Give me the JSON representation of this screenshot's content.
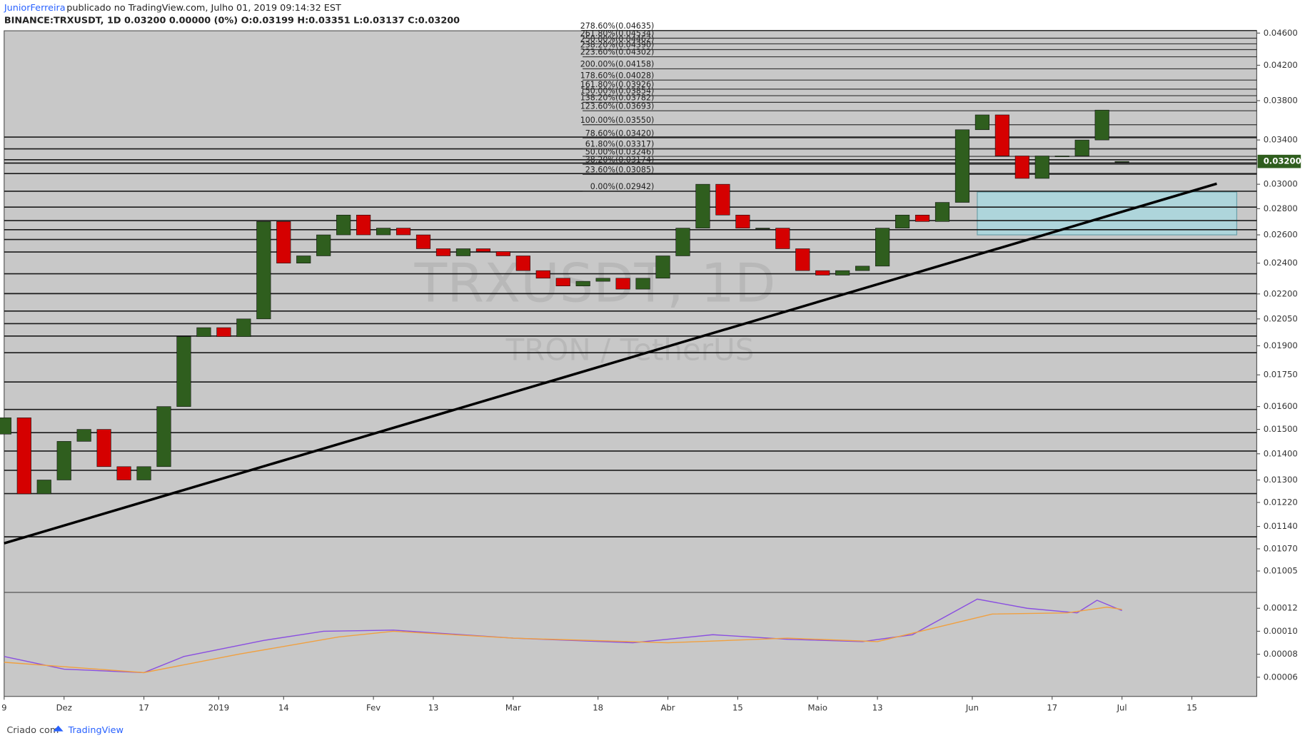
{
  "chart_data": [
    {
      "type": "candlestick",
      "author": "JuniorFerreira",
      "published": "publicado no TradingView.com, Julho 01, 2019 09:14:32 EST",
      "subtitle": "BINANCE:TRXUSDT, 1D  0.03200 0.00000 (0%) O:0.03199 H:0.03351 L:0.03137 C:0.03200",
      "watermark": "TRXUSDT, 1D",
      "watermark_subtitle": "TRON / TetherUS",
      "footer": "Criado com",
      "footer_brand": "TradingView",
      "log_scale": true,
      "up_color": "#2f5e1e",
      "down_color": "#d50000",
      "xlim": [
        "2018-11-19",
        "2019-07-28"
      ],
      "xticks": [
        {
          "value": "2018-11-19",
          "label": "9"
        },
        {
          "value": "2018-12-01",
          "label": "Dez"
        },
        {
          "value": "2018-12-17",
          "label": "17"
        },
        {
          "value": "2019-01-01",
          "label": "2019"
        },
        {
          "value": "2019-01-14",
          "label": "14"
        },
        {
          "value": "2019-02-01",
          "label": "Fev"
        },
        {
          "value": "2019-02-13",
          "label": "13"
        },
        {
          "value": "2019-03-01",
          "label": "Mar"
        },
        {
          "value": "2019-03-18",
          "label": "18"
        },
        {
          "value": "2019-04-01",
          "label": "Abr"
        },
        {
          "value": "2019-04-15",
          "label": "15"
        },
        {
          "value": "2019-05-01",
          "label": "Maio"
        },
        {
          "value": "2019-05-13",
          "label": "13"
        },
        {
          "value": "2019-06-01",
          "label": "Jun"
        },
        {
          "value": "2019-06-17",
          "label": "17"
        },
        {
          "value": "2019-07-01",
          "label": "Jul"
        },
        {
          "value": "2019-07-15",
          "label": "15"
        }
      ],
      "ylim": [
        0.00946,
        0.0463
      ],
      "yticks": [
        {
          "value": 0.046,
          "label": "0.04600"
        },
        {
          "value": 0.042,
          "label": "0.04200"
        },
        {
          "value": 0.038,
          "label": "0.03800"
        },
        {
          "value": 0.034,
          "label": "0.03400"
        },
        {
          "value": 0.03,
          "label": "0.03000"
        },
        {
          "value": 0.028,
          "label": "0.02800"
        },
        {
          "value": 0.026,
          "label": "0.02600"
        },
        {
          "value": 0.024,
          "label": "0.02400"
        },
        {
          "value": 0.022,
          "label": "0.02200"
        },
        {
          "value": 0.0205,
          "label": "0.02050"
        },
        {
          "value": 0.019,
          "label": "0.01900"
        },
        {
          "value": 0.0175,
          "label": "0.01750"
        },
        {
          "value": 0.016,
          "label": "0.01600"
        },
        {
          "value": 0.015,
          "label": "0.01500"
        },
        {
          "value": 0.014,
          "label": "0.01400"
        },
        {
          "value": 0.013,
          "label": "0.01300"
        },
        {
          "value": 0.0122,
          "label": "0.01220"
        },
        {
          "value": 0.0114,
          "label": "0.01140"
        },
        {
          "value": 0.0107,
          "label": "0.01070"
        },
        {
          "value": 0.01005,
          "label": "0.01005"
        }
      ],
      "last_price": {
        "value": 0.032,
        "label": "0.03200"
      },
      "last_price_color": "#2f5e1e",
      "fib_levels": [
        {
          "value": 0.02942,
          "label": "0.00%(0.02942)"
        },
        {
          "value": 0.03085,
          "label": "23.60%(0.03085)"
        },
        {
          "value": 0.03174,
          "label": "38.20%(0.03174)"
        },
        {
          "value": 0.03246,
          "label": "50.00%(0.03246)"
        },
        {
          "value": 0.03317,
          "label": "61.80%(0.03317)"
        },
        {
          "value": 0.0342,
          "label": "78.60%(0.03420)"
        },
        {
          "value": 0.0355,
          "label": "100.00%(0.03550)"
        },
        {
          "value": 0.03693,
          "label": "123.60%(0.03693)"
        },
        {
          "value": 0.03782,
          "label": "138.20%(0.03782)"
        },
        {
          "value": 0.03854,
          "label": "150.00%(0.03854)"
        },
        {
          "value": 0.03926,
          "label": "161.80%(0.03926)"
        },
        {
          "value": 0.04028,
          "label": "178.60%(0.04028)"
        },
        {
          "value": 0.04158,
          "label": "200.00%(0.04158)"
        },
        {
          "value": 0.04302,
          "label": "223.60%(0.04302)"
        },
        {
          "value": 0.0439,
          "label": "238.20%(0.04390)"
        },
        {
          "value": 0.04462,
          "label": "250.00%(0.04462)"
        },
        {
          "value": 0.04534,
          "label": "261.80%(0.04534)"
        },
        {
          "value": 0.04635,
          "label": "278.60%(0.04635)"
        }
      ],
      "levels": [
        0.03428,
        0.03316,
        0.03215,
        0.03185,
        0.03092,
        0.02941,
        0.02812,
        0.02707,
        0.02638,
        0.02566,
        0.02477,
        0.02329,
        0.02202,
        0.02096,
        0.02023,
        0.01953,
        0.01863,
        0.01715,
        0.01587,
        0.01486,
        0.01411,
        0.01336,
        0.01251,
        0.01107
      ],
      "trendline": {
        "x": [
          "2018-11-19",
          "2019-07-20"
        ],
        "y": [
          0.01087,
          0.03005
        ]
      },
      "zone": {
        "x": [
          "2019-06-02",
          "2019-07-24"
        ],
        "y": [
          0.02935,
          0.026
        ],
        "color": "#a8d8e0"
      },
      "x": [
        "2018-11-19",
        "2018-11-23",
        "2018-11-27",
        "2018-12-01",
        "2018-12-05",
        "2018-12-09",
        "2018-12-13",
        "2018-12-17",
        "2018-12-21",
        "2018-12-25",
        "2018-12-29",
        "2019-01-02",
        "2019-01-06",
        "2019-01-10",
        "2019-01-14",
        "2019-01-18",
        "2019-01-22",
        "2019-01-26",
        "2019-01-30",
        "2019-02-03",
        "2019-02-07",
        "2019-02-11",
        "2019-02-15",
        "2019-02-19",
        "2019-02-23",
        "2019-02-27",
        "2019-03-03",
        "2019-03-07",
        "2019-03-11",
        "2019-03-15",
        "2019-03-19",
        "2019-03-23",
        "2019-03-27",
        "2019-03-31",
        "2019-04-04",
        "2019-04-08",
        "2019-04-12",
        "2019-04-16",
        "2019-04-20",
        "2019-04-24",
        "2019-04-28",
        "2019-05-02",
        "2019-05-06",
        "2019-05-10",
        "2019-05-14",
        "2019-05-18",
        "2019-05-22",
        "2019-05-26",
        "2019-05-30",
        "2019-06-03",
        "2019-06-07",
        "2019-06-11",
        "2019-06-15",
        "2019-06-19",
        "2019-06-23",
        "2019-06-27",
        "2019-07-01"
      ],
      "open": [
        0.0148,
        0.0155,
        0.0125,
        0.013,
        0.0145,
        0.015,
        0.0135,
        0.013,
        0.0135,
        0.016,
        0.0195,
        0.02,
        0.0195,
        0.0205,
        0.027,
        0.024,
        0.0245,
        0.026,
        0.0275,
        0.026,
        0.0265,
        0.026,
        0.025,
        0.0245,
        0.025,
        0.0248,
        0.0245,
        0.0235,
        0.023,
        0.0225,
        0.0228,
        0.023,
        0.0223,
        0.023,
        0.0245,
        0.0265,
        0.03,
        0.0275,
        0.0265,
        0.0265,
        0.025,
        0.0235,
        0.0232,
        0.0235,
        0.0238,
        0.0265,
        0.0275,
        0.027,
        0.0285,
        0.035,
        0.0365,
        0.0325,
        0.0305,
        0.0325,
        0.0325,
        0.034,
        0.03199
      ],
      "close": [
        0.0155,
        0.0125,
        0.013,
        0.0145,
        0.015,
        0.0135,
        0.013,
        0.0135,
        0.016,
        0.0195,
        0.02,
        0.0195,
        0.0205,
        0.027,
        0.024,
        0.0245,
        0.026,
        0.0275,
        0.026,
        0.0265,
        0.026,
        0.025,
        0.0245,
        0.025,
        0.0248,
        0.0245,
        0.0235,
        0.023,
        0.0225,
        0.0228,
        0.023,
        0.0223,
        0.023,
        0.0245,
        0.0265,
        0.03,
        0.0275,
        0.0265,
        0.0265,
        0.025,
        0.0235,
        0.0232,
        0.0235,
        0.0238,
        0.0265,
        0.0275,
        0.027,
        0.0285,
        0.035,
        0.0365,
        0.0325,
        0.0305,
        0.0325,
        0.0325,
        0.034,
        0.037,
        0.032
      ]
    },
    {
      "type": "line",
      "ylim": [
        4.4e-05,
        0.0001331
      ],
      "yticks": [
        {
          "value": 0.00012,
          "label": "0.00012"
        },
        {
          "value": 0.0001,
          "label": "0.00010"
        },
        {
          "value": 8e-05,
          "label": "0.00008"
        },
        {
          "value": 6e-05,
          "label": "0.00006"
        }
      ],
      "series": [
        {
          "color": "#8a4fe0",
          "x": [
            "2018-11-19",
            "2018-12-01",
            "2018-12-17",
            "2018-12-25",
            "2019-01-10",
            "2019-01-22",
            "2019-02-05",
            "2019-03-01",
            "2019-03-25",
            "2019-04-10",
            "2019-04-25",
            "2019-05-10",
            "2019-05-20",
            "2019-06-02",
            "2019-06-12",
            "2019-06-22",
            "2019-06-26",
            "2019-07-01"
          ],
          "values": [
            7.8e-05,
            6.7e-05,
            6.4e-05,
            7.8e-05,
            9.2e-05,
            0.0001,
            0.000101,
            9.4e-05,
            9e-05,
            9.7e-05,
            9.3e-05,
            9.1e-05,
            9.7e-05,
            0.000128,
            0.00012,
            0.000116,
            0.000127,
            0.000118
          ]
        },
        {
          "color": "#f0a040",
          "x": [
            "2018-11-19",
            "2018-12-17",
            "2019-01-05",
            "2019-01-25",
            "2019-02-05",
            "2019-03-01",
            "2019-04-01",
            "2019-04-25",
            "2019-05-13",
            "2019-06-05",
            "2019-06-20",
            "2019-06-28",
            "2019-07-01"
          ],
          "values": [
            7.3e-05,
            6.4e-05,
            8e-05,
            9.5e-05,
            0.0001,
            9.4e-05,
            9e-05,
            9.4e-05,
            9.1e-05,
            0.000115,
            0.000116,
            0.000121,
            0.000119
          ]
        }
      ]
    }
  ]
}
